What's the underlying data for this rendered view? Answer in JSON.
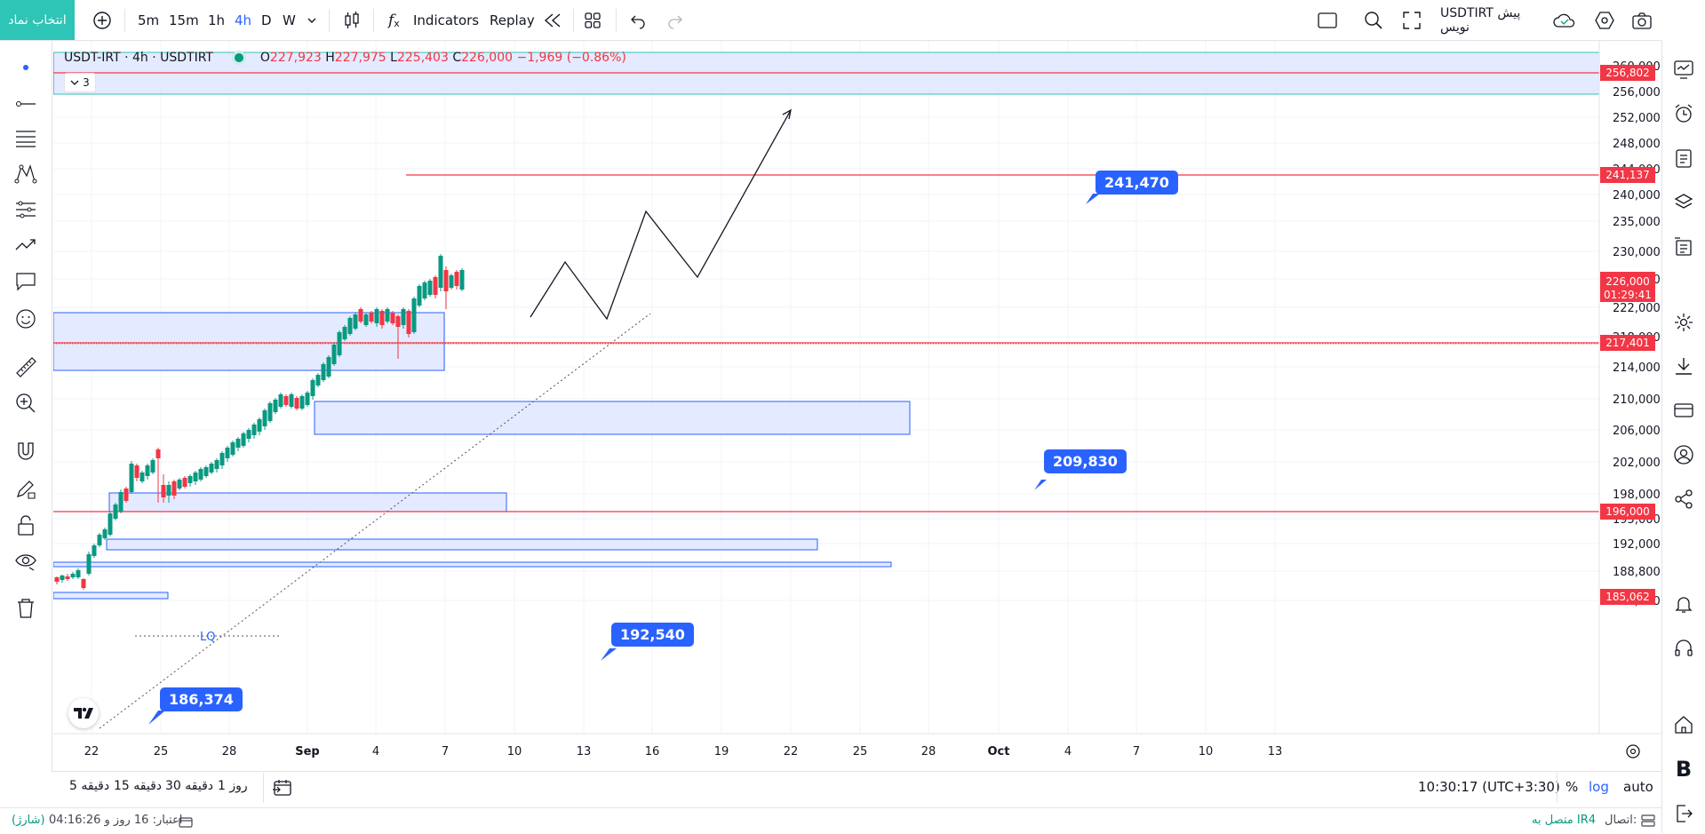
{
  "topbar": {
    "symbol_button": "انتخاب نماد",
    "intervals": [
      "5m",
      "15m",
      "1h",
      "4h",
      "D",
      "W"
    ],
    "active_interval": "4h",
    "indicators_label": "Indicators",
    "replay_label": "Replay",
    "chart_title": "USDTIRT پیش نویس"
  },
  "legend": {
    "title": "USDT-IRT · 4h · USDTIRT",
    "open_label": "O",
    "open": "227,923",
    "high_label": "H",
    "high": "227,975",
    "low_label": "L",
    "low": "225,403",
    "close_label": "C",
    "close": "226,000",
    "change": "−1,969 (−0.86%)",
    "indicators_count": "3"
  },
  "price_axis": {
    "labels": [
      "260,000",
      "256,000",
      "252,000",
      "248,000",
      "244,000",
      "240,000",
      "235,000",
      "230,000",
      "226,000",
      "222,000",
      "218,000",
      "214,000",
      "210,000",
      "206,000",
      "202,000",
      "198,000",
      "195,000",
      "192,000",
      "188,800",
      "185,000"
    ],
    "current_price": "226,000",
    "countdown": "01:29:41",
    "level_tags": [
      "256,802",
      "241,137",
      "217,401",
      "196,000",
      "185,062"
    ]
  },
  "time_axis": {
    "labels": [
      "22",
      "25",
      "28",
      "Sep",
      "4",
      "7",
      "10",
      "13",
      "16",
      "19",
      "22",
      "25",
      "28",
      "Oct",
      "4",
      "7",
      "10",
      "13"
    ]
  },
  "callouts": [
    "241,470",
    "209,830",
    "192,540",
    "186,374"
  ],
  "chart_text": {
    "lq_label": "LQ"
  },
  "timebar": {
    "ranges": [
      "5 دقیقه",
      "15 دقیقه",
      "30 دقیقه",
      "1 روز"
    ],
    "clock": "10:30:17 (UTC+3:30)",
    "percent": "%",
    "log": "log",
    "auto": "auto"
  },
  "statusbar": {
    "credit": "اعتبار: 16 روز و 04:16:26",
    "charge": "(شارژ)",
    "connection_label": "اتصال:",
    "connection_value": "متصل به IR4"
  },
  "colors": {
    "accent": "#2962ff",
    "teal": "#2ec4b6",
    "level_red": "#f23645",
    "zone_fill": "#dfe6ff",
    "zone_border": "#2962ff",
    "up": "#089981",
    "down": "#f23645"
  }
}
